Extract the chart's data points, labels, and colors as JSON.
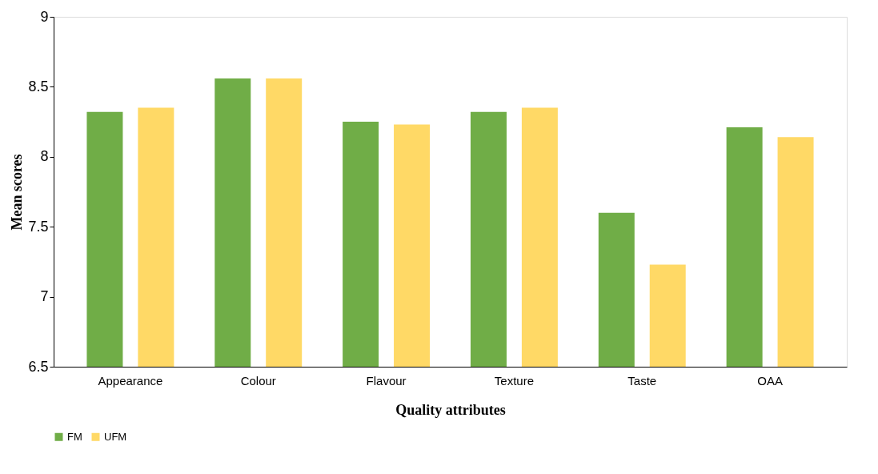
{
  "chart_data": {
    "type": "bar",
    "xlabel": "Quality attributes",
    "ylabel": "Mean scores",
    "categories": [
      "Appearance",
      "Colour",
      "Flavour",
      "Texture",
      "Taste",
      "OAA"
    ],
    "series": [
      {
        "name": "FM",
        "color": "#70ad47",
        "values": [
          8.32,
          8.56,
          8.25,
          8.32,
          7.6,
          8.21
        ]
      },
      {
        "name": "UFM",
        "color": "#ffd966",
        "values": [
          8.35,
          8.56,
          8.23,
          8.35,
          7.23,
          8.14
        ]
      }
    ],
    "ylim": [
      6.5,
      9
    ],
    "yticks": [
      6.5,
      7,
      7.5,
      8,
      8.5,
      9
    ],
    "grid": false,
    "legend": "bottom"
  }
}
